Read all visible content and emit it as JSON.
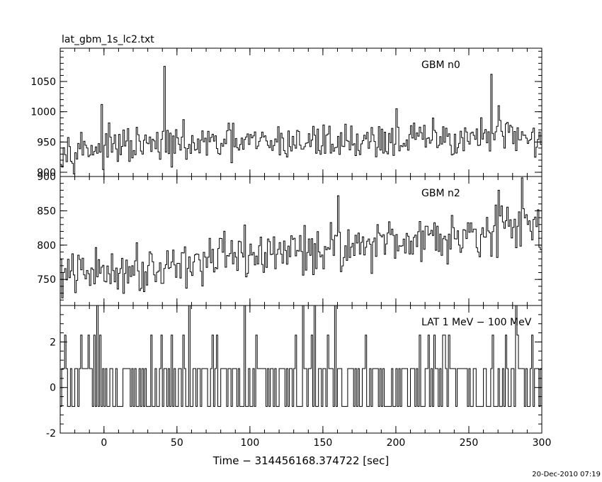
{
  "file_title": "lat_gbm_1s_lc2.txt",
  "xlabel": "Time − 314456168.374722 [sec]",
  "timestamp": "20-Dec-2010 07:19",
  "colors": {
    "line": "#000000",
    "background": "#ffffff"
  },
  "chart_data": [
    {
      "type": "line",
      "name": "GBM n0",
      "label": "GBM n0",
      "step": true,
      "x_range": [
        -30,
        300
      ],
      "ylim": [
        893,
        1105
      ],
      "yticks": [
        900,
        950,
        1000,
        1050
      ],
      "xticks": [
        0,
        50,
        100,
        150,
        200,
        250,
        300
      ],
      "baseline": 940,
      "trend_end": 960,
      "noise": 22,
      "spikes": [
        [
          41,
          1075
        ],
        [
          265,
          1062
        ],
        [
          -2,
          1012
        ],
        [
          270,
          1010
        ],
        [
          200,
          1005
        ]
      ]
    },
    {
      "type": "line",
      "name": "GBM n2",
      "label": "GBM n2",
      "step": true,
      "x_range": [
        -30,
        300
      ],
      "ylim": [
        712,
        900
      ],
      "yticks": [
        750,
        800,
        850,
        900
      ],
      "xticks": [
        0,
        50,
        100,
        150,
        200,
        250,
        300
      ],
      "baseline": 755,
      "trend_end": 830,
      "noise": 25,
      "spikes": [
        [
          286,
          898
        ],
        [
          270,
          880
        ],
        [
          160,
          872
        ]
      ]
    },
    {
      "type": "line",
      "name": "LAT 1 MeV − 100 MeV",
      "label": "LAT 1 MeV − 100 MeV",
      "step": true,
      "x_range": [
        -30,
        300
      ],
      "ylim": [
        -2,
        3.6
      ],
      "yticks": [
        -2,
        0,
        2
      ],
      "xticks": [
        0,
        50,
        100,
        150,
        200,
        250,
        300
      ],
      "levels": [
        -0.83,
        0.83,
        2.3,
        3.6
      ],
      "tall_spikes_at": [
        -5,
        58,
        96,
        136,
        144,
        158,
        282
      ]
    }
  ]
}
